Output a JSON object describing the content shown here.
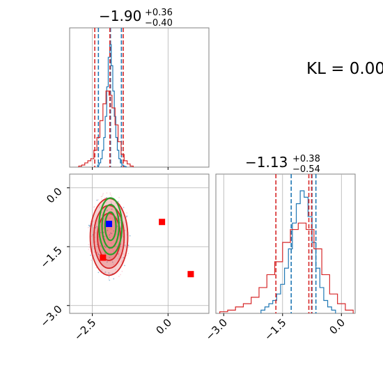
{
  "annotation": {
    "kl_label": "KL = 0.00"
  },
  "colors": {
    "red": "#d62728",
    "blue": "#1f77b4",
    "green": "#2ca02c",
    "marker_red": "#ff0000",
    "marker_blue": "#0000ff",
    "frame": "#808080",
    "grid": "#b0b0b0"
  },
  "chart_data": [
    {
      "type": "histogram",
      "panel": "top-left marginal (parameter 1)",
      "title_value": "−1.90",
      "title_plus": "+0.36",
      "title_minus": "−0.40",
      "xlim": [
        -3.25,
        1.35
      ],
      "series": [
        {
          "name": "",
          "color": "#1f77b4",
          "quantiles": [
            -2.3,
            -1.9,
            -1.54
          ],
          "bins_x": [
            -2.3,
            -2.25,
            -2.2,
            -2.15,
            -2.1,
            -2.05,
            -2.0,
            -1.95,
            -1.9,
            -1.85,
            -1.8,
            -1.75,
            -1.7,
            -1.65,
            -1.6,
            -1.55,
            -1.5,
            -1.45,
            -1.4
          ],
          "counts": [
            1,
            2,
            4,
            8,
            14,
            24,
            38,
            52,
            58,
            48,
            36,
            24,
            14,
            8,
            4,
            2,
            1,
            0.5,
            0.2
          ]
        },
        {
          "name": "",
          "color": "#d62728",
          "quantiles": [
            -2.42,
            -1.92,
            -1.48
          ],
          "bins_x": [
            -2.9,
            -2.8,
            -2.7,
            -2.6,
            -2.5,
            -2.4,
            -2.3,
            -2.2,
            -2.1,
            -2.0,
            -1.9,
            -1.8,
            -1.7,
            -1.6,
            -1.5,
            -1.4,
            -1.3,
            -1.2
          ],
          "counts": [
            0.5,
            1,
            2,
            3,
            4,
            8,
            14,
            22,
            30,
            36,
            34,
            28,
            20,
            12,
            6,
            3,
            1.5,
            0.5
          ]
        }
      ]
    },
    {
      "type": "scatter",
      "panel": "bottom-left joint (parameter 1 vs parameter 2)",
      "xlim": [
        -3.25,
        1.35
      ],
      "ylim": [
        -3.2,
        0.35
      ],
      "xticks": [
        "−2.5",
        "0.0"
      ],
      "yticks": [
        "0.0",
        "−1.5",
        "−3.0"
      ],
      "grid": true,
      "contours": [
        {
          "color": "#d62728",
          "center": [
            -1.95,
            -1.25
          ],
          "radii": [
            [
              0.62,
              0.98
            ],
            [
              0.5,
              0.8
            ],
            [
              0.38,
              0.6
            ]
          ],
          "filled": true
        },
        {
          "color": "#2ca02c",
          "center": [
            -1.9,
            -0.98
          ],
          "radii": [
            [
              0.38,
              0.72
            ],
            [
              0.28,
              0.55
            ],
            [
              0.18,
              0.36
            ]
          ],
          "filled": false
        }
      ],
      "markers": [
        {
          "color": "#ff0000",
          "points": [
            [
              -0.2,
              -0.87
            ],
            [
              0.75,
              -2.2
            ],
            [
              -2.15,
              -1.78
            ]
          ]
        },
        {
          "color": "#0000ff",
          "points": [
            [
              -1.95,
              -0.92
            ]
          ]
        }
      ]
    },
    {
      "type": "histogram",
      "panel": "bottom-right marginal (parameter 2)",
      "title_value": "−1.13",
      "title_plus": "+0.38",
      "title_minus": "−0.54",
      "xlim": [
        -3.2,
        0.35
      ],
      "xticks": [
        "−3.0",
        "−1.5",
        "0.0"
      ],
      "series": [
        {
          "name": "",
          "color": "#1f77b4",
          "quantiles": [
            -1.28,
            -0.75,
            -0.65
          ],
          "bins_x": [
            -2.0,
            -1.9,
            -1.8,
            -1.7,
            -1.6,
            -1.5,
            -1.4,
            -1.3,
            -1.2,
            -1.1,
            -1.0,
            -0.9,
            -0.8,
            -0.7,
            -0.6,
            -0.5,
            -0.4,
            -0.3,
            -0.2
          ],
          "counts": [
            1,
            2,
            3,
            4,
            6,
            9,
            14,
            20,
            28,
            34,
            38,
            36,
            30,
            22,
            14,
            8,
            4,
            2,
            1
          ]
        },
        {
          "name": "",
          "color": "#d62728",
          "quantiles": [
            -1.67,
            -0.83,
            -0.76
          ],
          "bins_x": [
            -3.0,
            -2.8,
            -2.6,
            -2.4,
            -2.2,
            -2.0,
            -1.8,
            -1.6,
            -1.4,
            -1.2,
            -1.0,
            -0.8,
            -0.6,
            -0.4,
            -0.2,
            0.0,
            0.2
          ],
          "counts": [
            0.5,
            1,
            2,
            3,
            5,
            8,
            12,
            16,
            22,
            26,
            28,
            26,
            20,
            12,
            6,
            3,
            1
          ]
        }
      ]
    }
  ]
}
